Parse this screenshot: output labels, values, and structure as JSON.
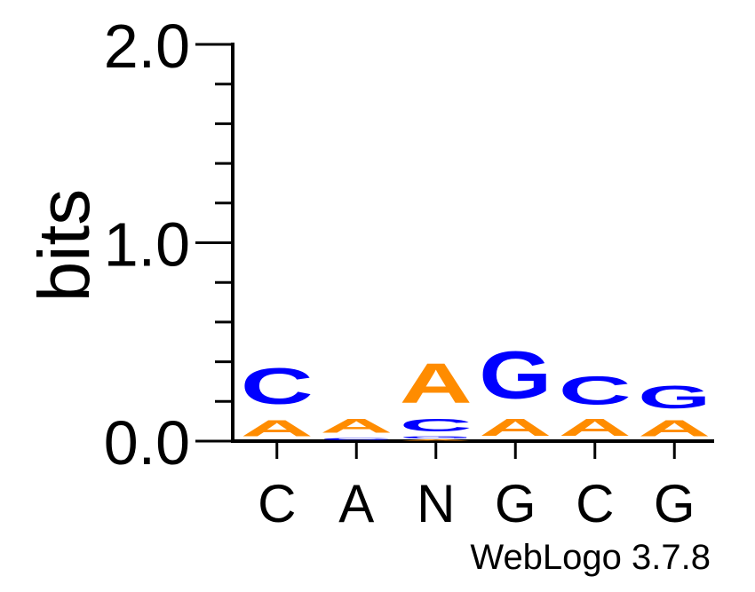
{
  "chart_data": {
    "type": "sequence-logo",
    "ylabel": "bits",
    "ylim": [
      0,
      2
    ],
    "yticks": [
      "0.0",
      "1.0",
      "2.0"
    ],
    "positions": [
      {
        "label": "C",
        "stack": [
          {
            "letter": "A",
            "bits": 0.13,
            "color": "#ff8c00"
          },
          {
            "letter": "C",
            "bits": 0.29,
            "color": "#0000ff"
          }
        ]
      },
      {
        "label": "A",
        "stack": [
          {
            "letter": "C",
            "bits": 0.02,
            "color": "#0000ff"
          },
          {
            "letter": "A",
            "bits": 0.11,
            "color": "#ff8c00"
          }
        ]
      },
      {
        "label": "N",
        "stack": [
          {
            "letter": "A",
            "bits": 0.01,
            "color": "#ff8c00"
          },
          {
            "letter": "G",
            "bits": 0.02,
            "color": "#0000ff"
          },
          {
            "letter": "C",
            "bits": 0.1,
            "color": "#0000ff"
          },
          {
            "letter": "A",
            "bits": 0.32,
            "color": "#ff8c00"
          }
        ]
      },
      {
        "label": "G",
        "stack": [
          {
            "letter": "A",
            "bits": 0.14,
            "color": "#ff8c00"
          },
          {
            "letter": "G",
            "bits": 0.38,
            "color": "#0000ff"
          }
        ]
      },
      {
        "label": "C",
        "stack": [
          {
            "letter": "A",
            "bits": 0.14,
            "color": "#ff8c00"
          },
          {
            "letter": "C",
            "bits": 0.23,
            "color": "#0000ff"
          }
        ]
      },
      {
        "label": "G",
        "stack": [
          {
            "letter": "A",
            "bits": 0.13,
            "color": "#ff8c00"
          },
          {
            "letter": "G",
            "bits": 0.18,
            "color": "#0000ff"
          }
        ]
      }
    ]
  },
  "footer": {
    "credit": "WebLogo 3.7.8"
  }
}
